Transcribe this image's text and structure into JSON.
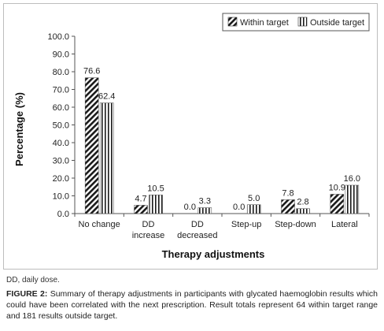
{
  "chart_data": {
    "type": "bar",
    "xlabel": "Therapy adjustments",
    "ylabel": "Percentage (%)",
    "ylim": [
      0,
      100
    ],
    "yticks": [
      "0.0",
      "10.0",
      "20.0",
      "30.0",
      "40.0",
      "50.0",
      "60.0",
      "70.0",
      "80.0",
      "90.0",
      "100.0"
    ],
    "categories": [
      [
        "No change"
      ],
      [
        "DD",
        "increase"
      ],
      [
        "DD",
        "decreased"
      ],
      [
        "Step-up"
      ],
      [
        "Step-down"
      ],
      [
        "Lateral"
      ]
    ],
    "series": [
      {
        "name": "Within target",
        "values": [
          76.6,
          4.7,
          0.0,
          0.0,
          7.8,
          10.9
        ],
        "labels": [
          "76.6",
          "4.7",
          "0.0",
          "0.0",
          "7.8",
          "10.9"
        ],
        "pattern": "diagonal"
      },
      {
        "name": "Outside target",
        "values": [
          62.4,
          10.5,
          3.3,
          5.0,
          2.8,
          16.0
        ],
        "labels": [
          "62.4",
          "10.5",
          "3.3",
          "5.0",
          "2.8",
          "16.0"
        ],
        "pattern": "vertical"
      }
    ],
    "legend_position": "top-right",
    "grid": false
  },
  "footnote": "DD, daily dose.",
  "caption": {
    "label": "FIGURE 2:",
    "text": " Summary of therapy adjustments in participants with glycated haemoglobin results which could have been correlated with the next prescription. Result totals represent 64 within target range and 181 results outside target."
  }
}
